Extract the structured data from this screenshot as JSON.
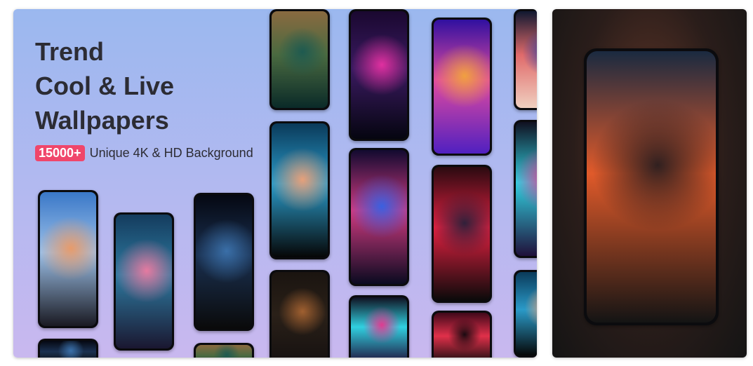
{
  "promo": {
    "headline": [
      "Trend",
      "Cool & Live",
      "Wallpapers"
    ],
    "badge": "15000+",
    "tagline": "Unique 4K & HD Background"
  },
  "wallpapers": [
    {
      "name": "tree-silhouette-sunset",
      "colors": [
        "#3a78c8",
        "#9cc0e8",
        "#e79b6b",
        "#1a1a22"
      ]
    },
    {
      "name": "pink-cloud-sky",
      "colors": [
        "#143c5e",
        "#2e7aa0",
        "#e57aa0",
        "#1a1730"
      ]
    },
    {
      "name": "earth-from-space",
      "colors": [
        "#050812",
        "#1a3050",
        "#3a6fa8",
        "#0a0a0a"
      ]
    },
    {
      "name": "venice-canal",
      "colors": [
        "#8a6a40",
        "#4a6a40",
        "#1e5a50",
        "#0a2a28"
      ]
    },
    {
      "name": "palm-trees-night",
      "colors": [
        "#0a3a5a",
        "#2a9ac8",
        "#e7a07a",
        "#060606"
      ]
    },
    {
      "name": "rottweiler-dog",
      "colors": [
        "#1a1410",
        "#2a2018",
        "#a06030",
        "#141010"
      ]
    },
    {
      "name": "spider-neon",
      "colors": [
        "#1a0830",
        "#3a1a60",
        "#e030a0",
        "#050510"
      ]
    },
    {
      "name": "galaxy-swirl",
      "colors": [
        "#120a30",
        "#d03a80",
        "#3a60e0",
        "#0a0a20"
      ]
    },
    {
      "name": "colorful-smoke",
      "colors": [
        "#101020",
        "#30d0e0",
        "#e03a90",
        "#20103a"
      ]
    },
    {
      "name": "color-splash-flowers",
      "colors": [
        "#3010a0",
        "#e04aa0",
        "#f0a040",
        "#5020c0"
      ]
    },
    {
      "name": "neon-heart-girl",
      "colors": [
        "#2a0a10",
        "#e02040",
        "#30203a",
        "#0a0a0a"
      ]
    },
    {
      "name": "neon-cap-girl",
      "colors": [
        "#40081a",
        "#e0304a",
        "#1a0a10",
        "#0a0a0a"
      ]
    },
    {
      "name": "cartoon-hero-edge",
      "colors": [
        "#101830",
        "#e06a6a",
        "#3040a0",
        "#f0d0c0"
      ]
    },
    {
      "name": "city-sunset-highway",
      "colors": [
        "#1a2a40",
        "#e05a2a",
        "#302020",
        "#141414"
      ]
    }
  ]
}
